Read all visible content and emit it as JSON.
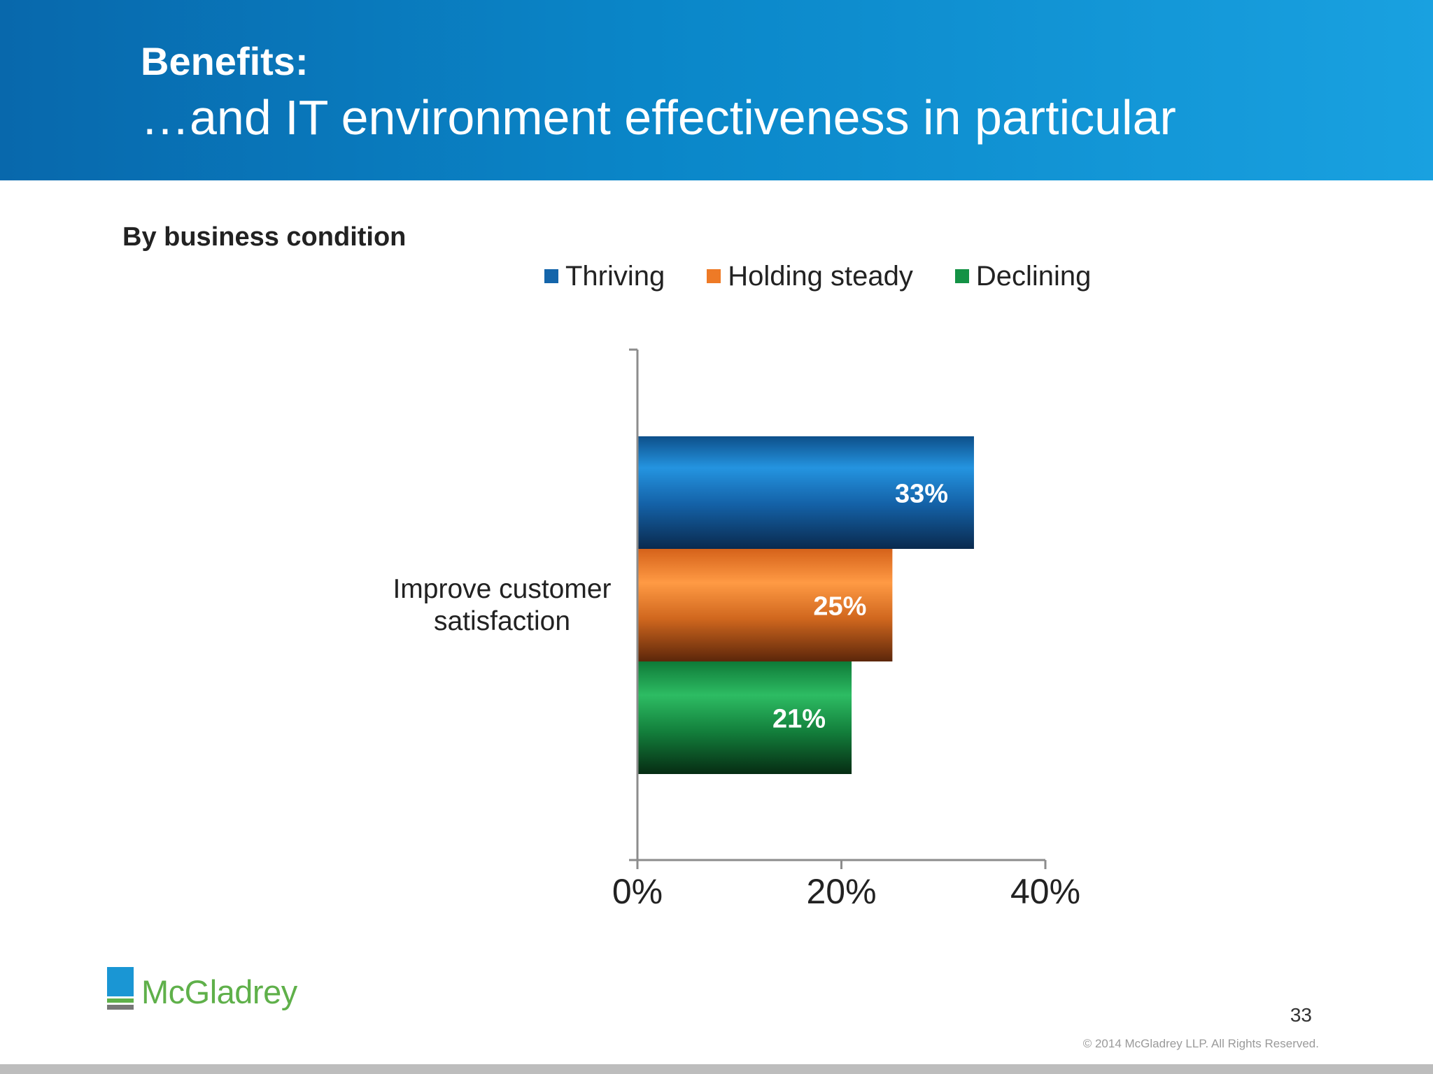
{
  "slide": {
    "title": "Benefits:",
    "subtitle": "…and IT environment effectiveness in particular",
    "section_label": "By business condition",
    "page_number": "33",
    "copyright": "© 2014 McGladrey LLP. All Rights Reserved.",
    "logo_text": "McGladrey"
  },
  "colors": {
    "thriving": "#1465aa",
    "holding_steady": "#ee7a26",
    "declining": "#149245",
    "header_left": "#0868ac",
    "header_right": "#19a1e0",
    "logo_blue": "#1a96d4",
    "logo_green": "#5fb04a"
  },
  "chart_data": {
    "type": "bar",
    "orientation": "horizontal",
    "title": "",
    "xlabel": "",
    "ylabel": "",
    "categories": [
      "Improve customer satisfaction"
    ],
    "series": [
      {
        "name": "Thriving",
        "values": [
          33
        ],
        "label": "33%"
      },
      {
        "name": "Holding steady",
        "values": [
          25
        ],
        "label": "25%"
      },
      {
        "name": "Declining",
        "values": [
          21
        ],
        "label": "21%"
      }
    ],
    "xlim": [
      0,
      40
    ],
    "xticks": [
      0,
      20,
      40
    ],
    "xtick_labels": [
      "0%",
      "20%",
      "40%"
    ],
    "grid": false,
    "legend_position": "top"
  }
}
